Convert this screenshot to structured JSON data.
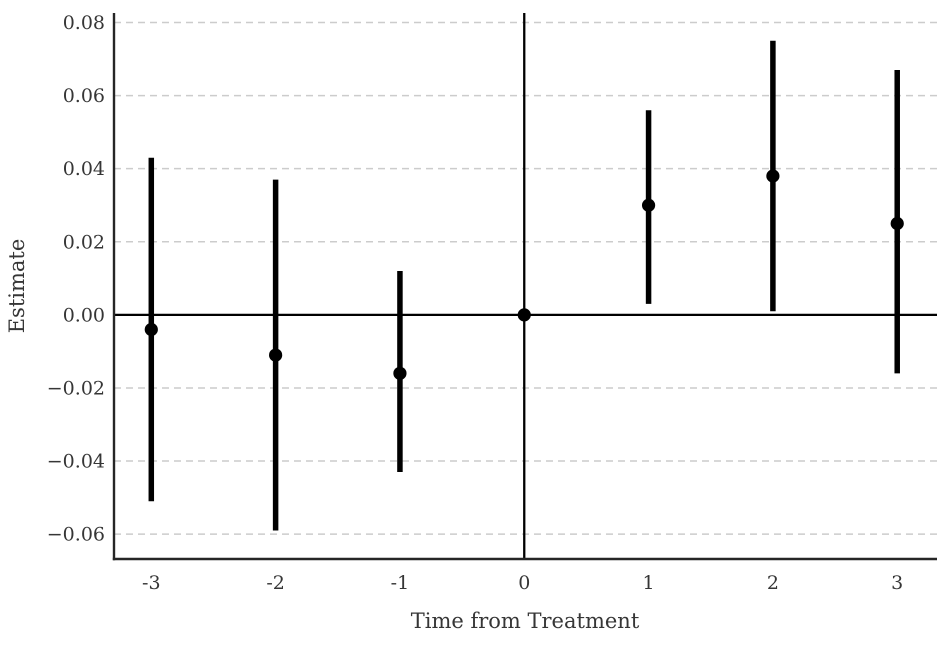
{
  "chart_data": {
    "type": "scatter",
    "subtype": "event-study-errorbar",
    "title": "",
    "xlabel": "Time from Treatment",
    "ylabel": "Estimate",
    "x": [
      -3,
      -2,
      -1,
      0,
      1,
      2,
      3
    ],
    "x_tick_labels": [
      "-3",
      "-2",
      "-1",
      "0",
      "1",
      "2",
      "3"
    ],
    "series": [
      {
        "name": "estimate",
        "values": [
          -0.004,
          -0.011,
          -0.016,
          0.0,
          0.03,
          0.038,
          0.025
        ],
        "ci_low": [
          -0.051,
          -0.059,
          -0.043,
          0.0,
          0.003,
          0.001,
          -0.016
        ],
        "ci_high": [
          0.043,
          0.037,
          0.012,
          0.0,
          0.056,
          0.075,
          0.067
        ]
      }
    ],
    "yticks": [
      0.08,
      0.06,
      0.04,
      0.02,
      0.0,
      -0.02,
      -0.04,
      -0.06
    ],
    "ytick_labels": [
      "0.08",
      "0.06",
      "0.04",
      "0.02",
      "0.00",
      "−0.02",
      "−0.04",
      "−0.06"
    ],
    "xlim": [
      -3.3,
      3.32
    ],
    "ylim": [
      -0.0668,
      0.0826
    ],
    "grid": "horizontal-dashed",
    "legend": "none",
    "reference_lines": {
      "hline_y": 0,
      "vline_x": 0
    },
    "colors": {
      "point": "#000000",
      "error_bar": "#000000",
      "reference_line": "#000000",
      "grid": "#cccccc",
      "spine": "#262626",
      "text": "#363636",
      "background": "#ffffff"
    }
  }
}
